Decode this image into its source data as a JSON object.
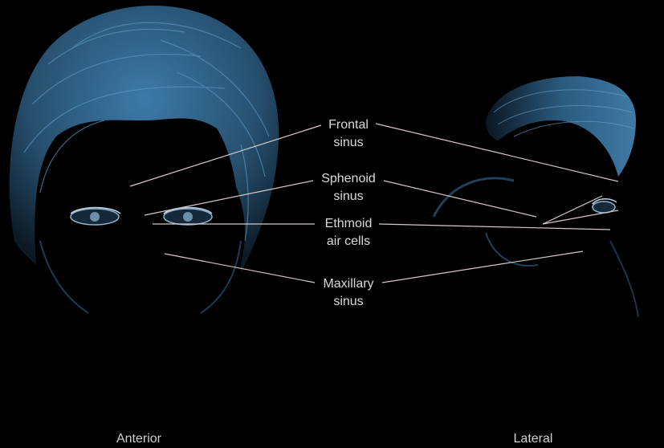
{
  "labels": {
    "frontal": [
      "Frontal",
      "sinus"
    ],
    "sphenoid": [
      "Sphenoid",
      "sinus"
    ],
    "ethmoid": [
      "Ethmoid",
      "air cells"
    ],
    "maxillary": [
      "Maxillary",
      "sinus"
    ]
  },
  "views": {
    "anterior": "Anterior",
    "lateral": "Lateral"
  },
  "colors": {
    "background": "#000000",
    "hair": "#2e5f86",
    "leader_line": "#d8c8c8",
    "text": "#d9d9d9"
  }
}
